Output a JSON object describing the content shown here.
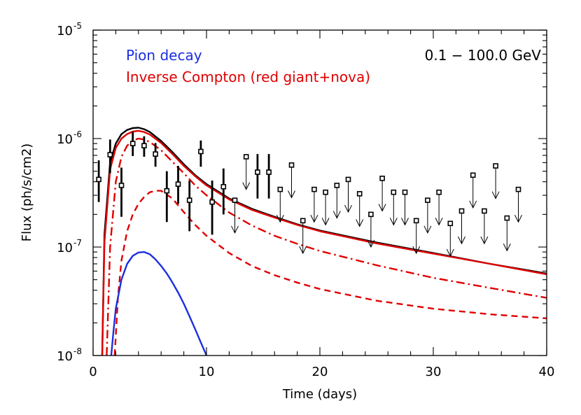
{
  "chart_data": {
    "type": "line",
    "title": "",
    "xlabel": "Time (days)",
    "ylabel": "Flux (ph/s/cm2)",
    "xlim": [
      0,
      40
    ],
    "ylim": [
      1e-08,
      1e-05
    ],
    "yscale": "log",
    "x_ticks": [
      "0",
      "10",
      "20",
      "30",
      "40"
    ],
    "y_ticks": [
      {
        "base": "10",
        "exp": "-8",
        "value": 1e-08
      },
      {
        "base": "10",
        "exp": "-7",
        "value": 1e-07
      },
      {
        "base": "10",
        "exp": "-6",
        "value": 1e-06
      },
      {
        "base": "10",
        "exp": "-5",
        "value": 1e-05
      }
    ],
    "energy_label": "0.1 − 100.0 GeV",
    "legend": [
      {
        "label": "Pion decay",
        "color": "#1a2ee0"
      },
      {
        "label": "Inverse Compton (red giant+nova)",
        "color": "#e00000"
      }
    ],
    "series": [
      {
        "style": "solid",
        "color": "#000000",
        "x": [
          0.8,
          1.0,
          1.5,
          2.0,
          2.5,
          3.0,
          3.5,
          4.0,
          4.5,
          5.0,
          6.0,
          7.0,
          8.0,
          9.0,
          10.0,
          12.0,
          14.0,
          16.0,
          18.0,
          20.0,
          25.0,
          30.0,
          35.0,
          40.0
        ],
        "y": [
          1e-08,
          1.3e-07,
          6e-07,
          9e-07,
          1.1e-06,
          1.2e-06,
          1.25e-06,
          1.26e-06,
          1.22e-06,
          1.15e-06,
          9.5e-07,
          7.5e-07,
          5.8e-07,
          4.6e-07,
          3.8e-07,
          2.8e-07,
          2.25e-07,
          1.9e-07,
          1.62e-07,
          1.42e-07,
          1.1e-07,
          8.8e-08,
          7e-08,
          5.7e-08
        ]
      },
      {
        "style": "solid",
        "color": "#e00000",
        "x": [
          0.8,
          1.0,
          1.5,
          2.0,
          2.5,
          3.0,
          3.5,
          4.0,
          4.5,
          5.0,
          6.0,
          7.0,
          8.0,
          9.0,
          10.0,
          12.0,
          14.0,
          16.0,
          18.0,
          20.0,
          25.0,
          30.0,
          35.0,
          40.0
        ],
        "y": [
          1e-08,
          1.1e-07,
          5.2e-07,
          8.2e-07,
          1e-06,
          1.1e-06,
          1.16e-06,
          1.18e-06,
          1.15e-06,
          1.09e-06,
          9.1e-07,
          7.2e-07,
          5.6e-07,
          4.5e-07,
          3.7e-07,
          2.75e-07,
          2.2e-07,
          1.87e-07,
          1.6e-07,
          1.4e-07,
          1.08e-07,
          8.7e-08,
          7e-08,
          5.6e-08
        ]
      },
      {
        "style": "dashdot",
        "color": "#e00000",
        "x": [
          1.2,
          1.5,
          2.0,
          2.5,
          3.0,
          3.5,
          4.0,
          4.5,
          5.0,
          6.0,
          7.0,
          8.0,
          9.0,
          10.0,
          12.0,
          14.0,
          16.0,
          18.0,
          20.0,
          25.0,
          30.0,
          35.0,
          40.0
        ],
        "y": [
          1e-08,
          1e-07,
          4e-07,
          6.8e-07,
          8.6e-07,
          9.6e-07,
          1e-06,
          9.8e-07,
          9.3e-07,
          7.8e-07,
          6.1e-07,
          4.8e-07,
          3.7e-07,
          3e-07,
          2.08e-07,
          1.58e-07,
          1.27e-07,
          1.07e-07,
          9.2e-08,
          6.8e-08,
          5.2e-08,
          4.2e-08,
          3.4e-08
        ]
      },
      {
        "style": "dashed",
        "color": "#e00000",
        "x": [
          1.9,
          2.2,
          2.5,
          3.0,
          3.5,
          4.0,
          4.5,
          5.0,
          5.5,
          6.0,
          7.0,
          8.0,
          9.0,
          10.0,
          12.0,
          14.0,
          16.0,
          18.0,
          20.0,
          25.0,
          30.0,
          35.0,
          40.0
        ],
        "y": [
          1e-08,
          3.5e-08,
          7.5e-08,
          1.4e-07,
          2e-07,
          2.5e-07,
          2.9e-07,
          3.2e-07,
          3.3e-07,
          3.3e-07,
          2.8e-07,
          2.1e-07,
          1.6e-07,
          1.27e-07,
          8.8e-08,
          6.7e-08,
          5.5e-08,
          4.7e-08,
          4.1e-08,
          3.2e-08,
          2.7e-08,
          2.4e-08,
          2.2e-08
        ]
      },
      {
        "name": "Pion decay",
        "style": "solid",
        "color": "#1a2ee0",
        "x": [
          1.6,
          1.8,
          2.0,
          2.5,
          3.0,
          3.5,
          4.0,
          4.5,
          5.0,
          5.5,
          6.0,
          6.5,
          7.0,
          7.5,
          8.0,
          8.5,
          9.0,
          9.5,
          10.0
        ],
        "y": [
          1e-08,
          1.7e-08,
          2.7e-08,
          5e-08,
          7e-08,
          8.3e-08,
          8.9e-08,
          9e-08,
          8.6e-08,
          7.7e-08,
          6.7e-08,
          5.7e-08,
          4.7e-08,
          3.8e-08,
          3e-08,
          2.3e-08,
          1.75e-08,
          1.32e-08,
          1e-08
        ]
      }
    ],
    "detections": [
      {
        "x": 0.5,
        "y": 4.2e-07,
        "lo": 2.6e-07,
        "hi": 6.3e-07
      },
      {
        "x": 1.5,
        "y": 7.1e-07,
        "lo": 4.8e-07,
        "hi": 9.8e-07
      },
      {
        "x": 2.5,
        "y": 3.7e-07,
        "lo": 1.9e-07,
        "hi": 5.4e-07
      },
      {
        "x": 3.5,
        "y": 9e-07,
        "lo": 6.9e-07,
        "hi": 1.15e-06
      },
      {
        "x": 4.5,
        "y": 8.6e-07,
        "lo": 6.8e-07,
        "hi": 1.05e-06
      },
      {
        "x": 5.5,
        "y": 7.2e-07,
        "lo": 5.5e-07,
        "hi": 9.1e-07
      },
      {
        "x": 6.5,
        "y": 3.3e-07,
        "lo": 1.7e-07,
        "hi": 5e-07
      },
      {
        "x": 7.5,
        "y": 3.8e-07,
        "lo": 2.5e-07,
        "hi": 5.6e-07
      },
      {
        "x": 8.5,
        "y": 2.7e-07,
        "lo": 1.4e-07,
        "hi": 4.1e-07
      },
      {
        "x": 9.5,
        "y": 7.6e-07,
        "lo": 5.5e-07,
        "hi": 9.6e-07
      },
      {
        "x": 10.5,
        "y": 2.6e-07,
        "lo": 1.3e-07,
        "hi": 4.1e-07
      },
      {
        "x": 11.5,
        "y": 3.6e-07,
        "lo": 2e-07,
        "hi": 5.3e-07
      },
      {
        "x": 14.5,
        "y": 4.9e-07,
        "lo": 2.8e-07,
        "hi": 7.2e-07
      },
      {
        "x": 15.5,
        "y": 4.9e-07,
        "lo": 2.8e-07,
        "hi": 7.2e-07
      }
    ],
    "upper_limits": [
      {
        "x": 12.5,
        "y": 2.7e-07
      },
      {
        "x": 13.5,
        "y": 6.8e-07
      },
      {
        "x": 16.5,
        "y": 3.4e-07
      },
      {
        "x": 17.5,
        "y": 5.7e-07
      },
      {
        "x": 18.5,
        "y": 1.75e-07
      },
      {
        "x": 19.5,
        "y": 3.4e-07
      },
      {
        "x": 20.5,
        "y": 3.2e-07
      },
      {
        "x": 21.5,
        "y": 3.7e-07
      },
      {
        "x": 22.5,
        "y": 4.2e-07
      },
      {
        "x": 23.5,
        "y": 3.1e-07
      },
      {
        "x": 24.5,
        "y": 2e-07
      },
      {
        "x": 25.5,
        "y": 4.3e-07
      },
      {
        "x": 26.5,
        "y": 3.2e-07
      },
      {
        "x": 27.5,
        "y": 3.2e-07
      },
      {
        "x": 28.5,
        "y": 1.75e-07
      },
      {
        "x": 29.5,
        "y": 2.7e-07
      },
      {
        "x": 30.5,
        "y": 3.2e-07
      },
      {
        "x": 31.5,
        "y": 1.65e-07
      },
      {
        "x": 32.5,
        "y": 2.15e-07
      },
      {
        "x": 33.5,
        "y": 4.6e-07
      },
      {
        "x": 34.5,
        "y": 2.15e-07
      },
      {
        "x": 35.5,
        "y": 5.6e-07
      },
      {
        "x": 36.5,
        "y": 1.85e-07
      },
      {
        "x": 37.5,
        "y": 3.4e-07
      }
    ],
    "upper_limit_factor": 0.5
  }
}
